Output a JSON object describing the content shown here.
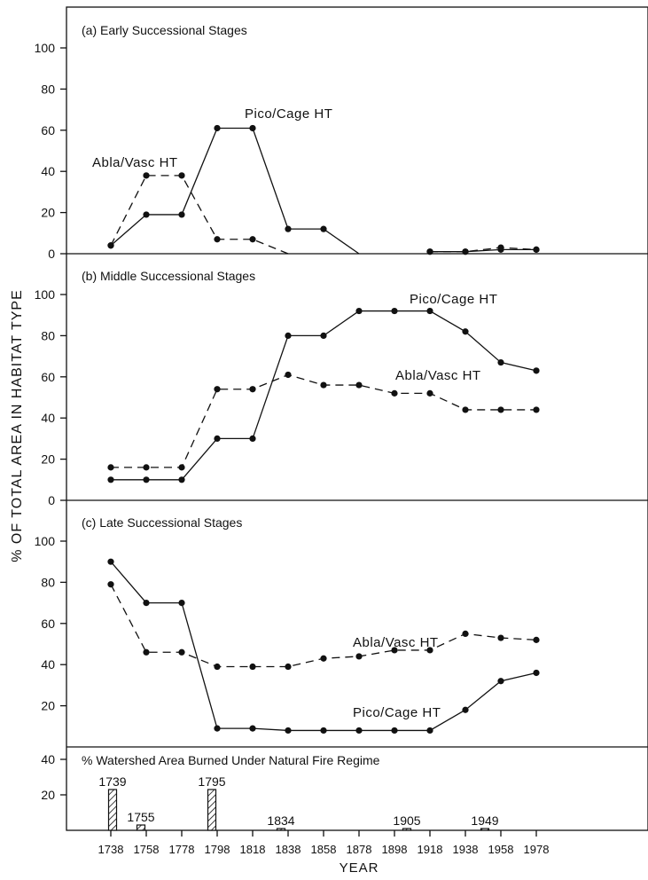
{
  "chart_data": [
    {
      "type": "line",
      "title": "(a) Early Successional Stages",
      "x": [
        1738,
        1758,
        1778,
        1798,
        1818,
        1838,
        1858,
        1878,
        1898,
        1918,
        1938,
        1958,
        1978
      ],
      "ylim": [
        0,
        110
      ],
      "yticks": [
        0,
        20,
        40,
        60,
        80,
        100
      ],
      "series": [
        {
          "name": "Pico/Cage HT",
          "style": "solid",
          "values": [
            4,
            19,
            19,
            61,
            61,
            12,
            12,
            0,
            null,
            1,
            1,
            2,
            2
          ]
        },
        {
          "name": "Abla/Vasc HT",
          "style": "dashed",
          "values": [
            4,
            38,
            38,
            7,
            7,
            0,
            null,
            null,
            null,
            1,
            1,
            3,
            2
          ]
        }
      ]
    },
    {
      "type": "line",
      "title": "(b) Middle Successional Stages",
      "x": [
        1738,
        1758,
        1778,
        1798,
        1818,
        1838,
        1858,
        1878,
        1898,
        1918,
        1938,
        1958,
        1978
      ],
      "ylim": [
        0,
        110
      ],
      "yticks": [
        0,
        20,
        40,
        60,
        80,
        100
      ],
      "series": [
        {
          "name": "Pico/Cage HT",
          "style": "solid",
          "values": [
            10,
            10,
            10,
            30,
            30,
            80,
            80,
            92,
            92,
            92,
            82,
            67,
            63
          ]
        },
        {
          "name": "Abla/Vasc HT",
          "style": "dashed",
          "values": [
            16,
            16,
            16,
            54,
            54,
            61,
            56,
            56,
            52,
            52,
            44,
            44,
            44
          ]
        }
      ]
    },
    {
      "type": "line",
      "title": "(c) Late Successional Stages",
      "x": [
        1738,
        1758,
        1778,
        1798,
        1818,
        1838,
        1858,
        1878,
        1898,
        1918,
        1938,
        1958,
        1978
      ],
      "ylim": [
        0,
        110
      ],
      "yticks": [
        20,
        40,
        60,
        80,
        100
      ],
      "series": [
        {
          "name": "Pico/Cage HT",
          "style": "solid",
          "values": [
            90,
            70,
            70,
            9,
            9,
            8,
            8,
            8,
            8,
            8,
            18,
            32,
            36
          ]
        },
        {
          "name": "Abla/Vasc HT",
          "style": "dashed",
          "values": [
            79,
            46,
            46,
            39,
            39,
            39,
            43,
            44,
            47,
            47,
            55,
            53,
            52
          ]
        }
      ]
    },
    {
      "type": "bar",
      "title": "% Watershed Area Burned Under Natural Fire Regime",
      "categories": [
        "1739",
        "1755",
        "1795",
        "1834",
        "1905",
        "1949"
      ],
      "values": [
        23,
        3,
        23,
        1,
        1,
        1
      ],
      "ylim": [
        0,
        40
      ],
      "yticks": [
        20,
        40
      ]
    }
  ],
  "axes": {
    "ylabel": "% OF TOTAL AREA IN HABITAT TYPE",
    "xlabel": "YEAR",
    "xticks": [
      "1738",
      "1758",
      "1778",
      "1798",
      "1818",
      "1838",
      "1858",
      "1878",
      "1898",
      "1918",
      "1938",
      "1958",
      "1978"
    ]
  }
}
